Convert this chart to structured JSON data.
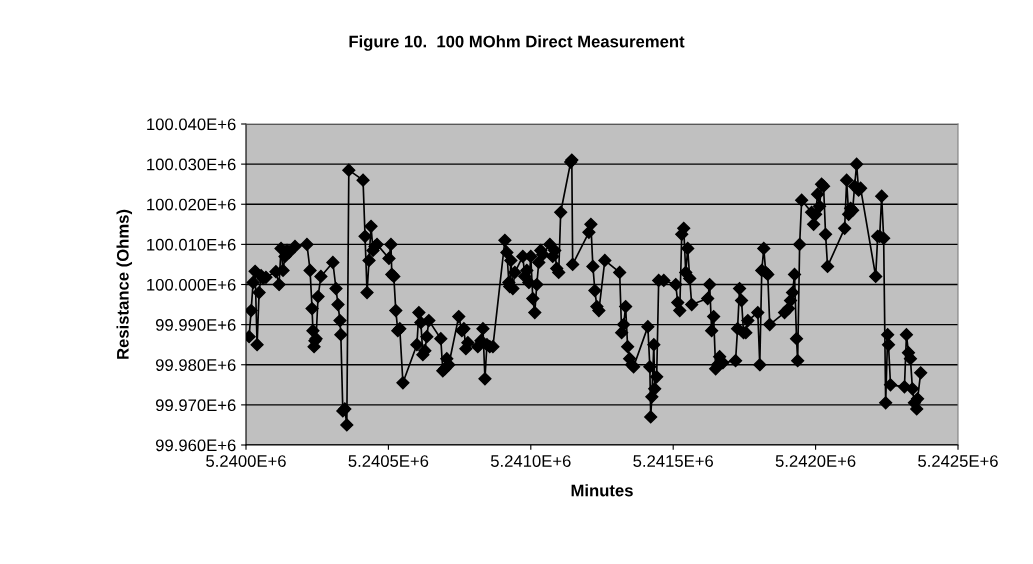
{
  "chart_data": {
    "type": "line",
    "title": "Figure 10.  100 MOhm Direct Measurement",
    "xlabel": "Minutes",
    "ylabel": "Resistance (Ohms)",
    "x": [
      5240011,
      5240018,
      5240025,
      5240032,
      5240039,
      5240046,
      5240053,
      5240060,
      5240070,
      5240105,
      5240116,
      5240123,
      5240130,
      5240137,
      5240144,
      5240151,
      5240172,
      5240214,
      5240225,
      5240232,
      5240235,
      5240239,
      5240242,
      5240246,
      5240253,
      5240263,
      5240305,
      5240316,
      5240323,
      5240330,
      5240333,
      5240340,
      5240347,
      5240354,
      5240361,
      5240411,
      5240418,
      5240425,
      5240432,
      5240439,
      5240446,
      5240453,
      5240460,
      5240502,
      5240509,
      5240512,
      5240519,
      5240526,
      5240533,
      5240540,
      5240551,
      5240600,
      5240607,
      5240614,
      5240621,
      5240628,
      5240635,
      5240642,
      5240684,
      5240691,
      5240698,
      5240705,
      5240712,
      5240747,
      5240758,
      5240765,
      5240772,
      5240779,
      5240814,
      5240825,
      5240832,
      5240839,
      5240846,
      5240856,
      5240867,
      5240909,
      5240916,
      5240923,
      5240926,
      5240930,
      5240937,
      5240944,
      5240972,
      5240979,
      5240986,
      5240993,
      5241000,
      5241007,
      5241014,
      5241021,
      5241028,
      5241035,
      5241042,
      5241067,
      5241077,
      5241084,
      5241091,
      5241098,
      5241105,
      5241140,
      5241144,
      5241147,
      5241204,
      5241211,
      5241218,
      5241225,
      5241232,
      5241239,
      5241260,
      5241312,
      5241319,
      5241326,
      5241333,
      5241340,
      5241347,
      5241354,
      5241361,
      5241411,
      5241418,
      5241421,
      5241425,
      5241432,
      5241435,
      5241442,
      5241449,
      5241467,
      5241509,
      5241516,
      5241523,
      5241530,
      5241537,
      5241544,
      5241551,
      5241558,
      5241565,
      5241621,
      5241628,
      5241635,
      5241642,
      5241649,
      5241656,
      5241663,
      5241674,
      5241719,
      5241726,
      5241733,
      5241740,
      5241747,
      5241755,
      5241762,
      5241797,
      5241804,
      5241811,
      5241818,
      5241825,
      5241832,
      5241839,
      5241891,
      5241905,
      5241912,
      5241919,
      5241926,
      5241933,
      5241937,
      5241944,
      5241951,
      5241986,
      5241993,
      5242000,
      5242007,
      5242014,
      5242021,
      5242028,
      5242035,
      5242042,
      5242102,
      5242109,
      5242116,
      5242123,
      5242130,
      5242137,
      5242144,
      5242151,
      5242158,
      5242211,
      5242218,
      5242225,
      5242232,
      5242239,
      5242246,
      5242253,
      5242256,
      5242263,
      5242312,
      5242319,
      5242326,
      5242333,
      5242340,
      5242347,
      5242355,
      5242358,
      5242369
    ],
    "series": [
      {
        "color": "#000000",
        "values": [
          99987000,
          99993500,
          100000500,
          100003300,
          99985000,
          99998000,
          100002200,
          100001500,
          100001800,
          100003200,
          100000000,
          100009000,
          100003500,
          100007000,
          100008500,
          100008000,
          100009500,
          100010000,
          100003500,
          99994000,
          99988500,
          99984500,
          99986000,
          99986500,
          99997000,
          100002000,
          100005500,
          99999000,
          99995000,
          99991000,
          99987500,
          99968500,
          99969000,
          99965000,
          100028500,
          100026000,
          100012000,
          99998000,
          100006000,
          100014500,
          100008500,
          100009500,
          100010000,
          100006500,
          100010000,
          100002500,
          100002000,
          99993500,
          99988500,
          99989000,
          99975500,
          99985000,
          99993000,
          99990500,
          99982500,
          99983500,
          99987000,
          99991000,
          99986500,
          99978500,
          99979000,
          99981500,
          99980000,
          99992000,
          99988500,
          99989000,
          99984000,
          99985500,
          99984500,
          99986000,
          99989000,
          99976500,
          99985000,
          99984500,
          99984500,
          100011000,
          100008000,
          100000500,
          99999500,
          100006000,
          99999000,
          100003000,
          100007000,
          100002000,
          100003500,
          100000500,
          100007000,
          99996500,
          99993000,
          100000000,
          100005500,
          100008500,
          100007500,
          100010000,
          100007000,
          100008500,
          100004000,
          100003000,
          100018000,
          100030500,
          100031000,
          100005000,
          100013000,
          100015000,
          100004500,
          99998500,
          99994500,
          99993500,
          100006000,
          100003000,
          99988000,
          99990000,
          99994500,
          99984500,
          99981500,
          99980000,
          99979500,
          99989500,
          99979500,
          99967000,
          99972000,
          99985000,
          99974000,
          99977000,
          100001000,
          100001000,
          100000000,
          99995500,
          99993500,
          100012500,
          100014000,
          100003000,
          100009000,
          100001500,
          99995000,
          99996500,
          100000000,
          99988500,
          99992000,
          99979000,
          99980000,
          99982000,
          99980500,
          99981000,
          99989000,
          99999000,
          99996000,
          99988000,
          99988000,
          99991000,
          99993000,
          99980000,
          100003500,
          100009000,
          100003000,
          100002500,
          99990000,
          99993000,
          99994000,
          99996000,
          99998000,
          100002500,
          99986500,
          99981000,
          100010000,
          100021000,
          100018000,
          100015000,
          100017500,
          100022500,
          100019500,
          100025000,
          100024500,
          100012500,
          100004500,
          100014000,
          100026000,
          100017500,
          100019000,
          100018500,
          100024500,
          100030000,
          100023500,
          100024000,
          100002000,
          100012000,
          100012000,
          100022000,
          100011500,
          99970500,
          99987500,
          99985000,
          99975000,
          99974500,
          99987500,
          99983000,
          99981500,
          99974000,
          99970500,
          99969000,
          99971500,
          99978000
        ]
      }
    ],
    "xlim": [
      5240000,
      5242500
    ],
    "xticks": [
      {
        "value": 5240000,
        "label": "5.2400E+6"
      },
      {
        "value": 5240500,
        "label": "5.2405E+6"
      },
      {
        "value": 5241000,
        "label": "5.2410E+6"
      },
      {
        "value": 5241500,
        "label": "5.2415E+6"
      },
      {
        "value": 5242000,
        "label": "5.2420E+6"
      },
      {
        "value": 5242500,
        "label": "5.2425E+6"
      }
    ],
    "ylim": [
      99960000,
      100040000
    ],
    "yticks": [
      {
        "value": 99960000,
        "label": "99.960E+6"
      },
      {
        "value": 99970000,
        "label": "99.970E+6"
      },
      {
        "value": 99980000,
        "label": "99.980E+6"
      },
      {
        "value": 99990000,
        "label": "99.990E+6"
      },
      {
        "value": 100000000,
        "label": "100.000E+6"
      },
      {
        "value": 100010000,
        "label": "100.010E+6"
      },
      {
        "value": 100020000,
        "label": "100.020E+6"
      },
      {
        "value": 100030000,
        "label": "100.030E+6"
      },
      {
        "value": 100040000,
        "label": "100.040E+6"
      }
    ],
    "grid": "y",
    "marker": "diamond",
    "line_style": "solid"
  }
}
